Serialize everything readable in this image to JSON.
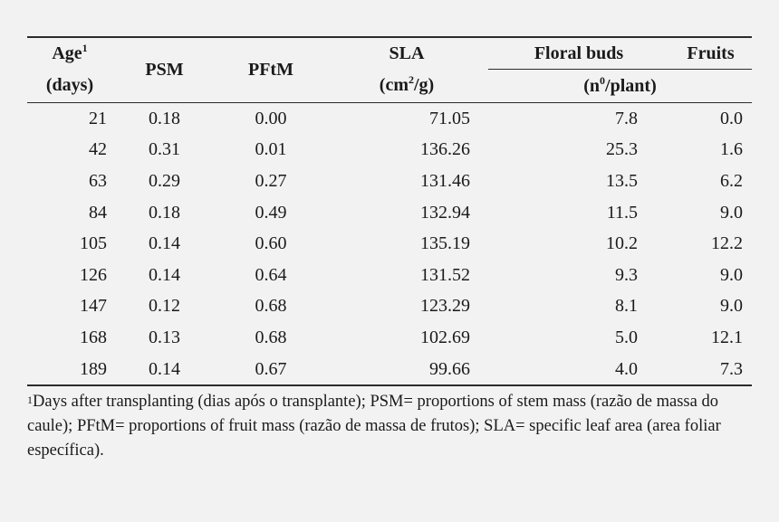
{
  "headers": {
    "age_line1": "Age",
    "age_sup": "1",
    "age_line2": "(days)",
    "psm": "PSM",
    "pftm": "PFtM",
    "sla_line1": "SLA",
    "sla_line2_a": "(cm",
    "sla_line2_sup": "2",
    "sla_line2_b": "/g)",
    "floral_buds": "Floral buds",
    "fruits": "Fruits",
    "unit_a": "(n",
    "unit_sup": "0",
    "unit_b": "/plant)"
  },
  "rows": [
    {
      "age": "21",
      "psm": "0.18",
      "pftm": "0.00",
      "sla": "71.05",
      "buds": "7.8",
      "fruits": "0.0"
    },
    {
      "age": "42",
      "psm": "0.31",
      "pftm": "0.01",
      "sla": "136.26",
      "buds": "25.3",
      "fruits": "1.6"
    },
    {
      "age": "63",
      "psm": "0.29",
      "pftm": "0.27",
      "sla": "131.46",
      "buds": "13.5",
      "fruits": "6.2"
    },
    {
      "age": "84",
      "psm": "0.18",
      "pftm": "0.49",
      "sla": "132.94",
      "buds": "11.5",
      "fruits": "9.0"
    },
    {
      "age": "105",
      "psm": "0.14",
      "pftm": "0.60",
      "sla": "135.19",
      "buds": "10.2",
      "fruits": "12.2"
    },
    {
      "age": "126",
      "psm": "0.14",
      "pftm": "0.64",
      "sla": "131.52",
      "buds": "9.3",
      "fruits": "9.0"
    },
    {
      "age": "147",
      "psm": "0.12",
      "pftm": "0.68",
      "sla": "123.29",
      "buds": "8.1",
      "fruits": "9.0"
    },
    {
      "age": "168",
      "psm": "0.13",
      "pftm": "0.68",
      "sla": "102.69",
      "buds": "5.0",
      "fruits": "12.1"
    },
    {
      "age": "189",
      "psm": "0.14",
      "pftm": "0.67",
      "sla": "99.66",
      "buds": "4.0",
      "fruits": "7.3"
    }
  ],
  "footnote": {
    "sup": "1",
    "text": "Days after transplanting (dias após o transplante); PSM= proportions of stem mass (razão de massa do caule); PFtM= proportions of fruit mass (razão de massa de frutos); SLA= specific leaf area (area foliar específica)."
  }
}
